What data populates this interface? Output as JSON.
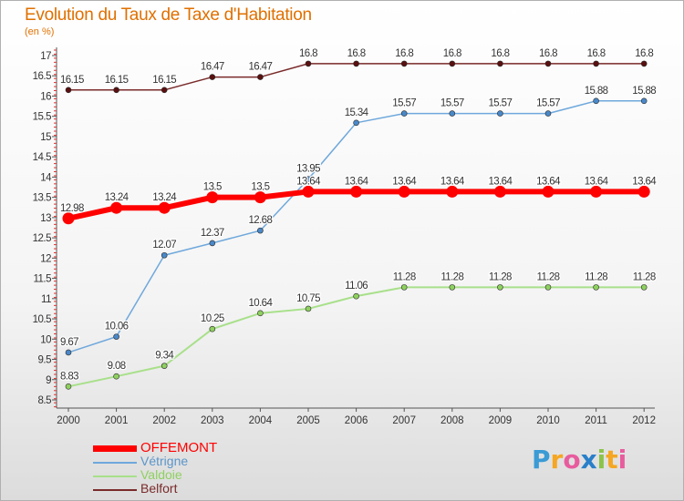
{
  "header": {
    "title": "Evolution du Taux de Taxe d'Habitation",
    "subtitle": "(en %)"
  },
  "legend": {
    "items": [
      {
        "label": "OFFEMONT",
        "color": "#ff0000"
      },
      {
        "label": "Vétrigne",
        "color": "#6fa8dc"
      },
      {
        "label": "Valdoie",
        "color": "#a8e08a"
      },
      {
        "label": "Belfort",
        "color": "#7a2a2a"
      }
    ]
  },
  "logo": {
    "letters": [
      "P",
      "r",
      "o",
      "x",
      "i",
      "t",
      "i"
    ],
    "colors": [
      "#3a9bd5",
      "#f5a623",
      "#e85c9e",
      "#2a7fc9",
      "#8bc34a",
      "#f5a623",
      "#e85c9e"
    ]
  },
  "chart_data": {
    "type": "line",
    "title": "Evolution du Taux de Taxe d'Habitation",
    "ylabel": "(en %)",
    "ylim": [
      8.5,
      17
    ],
    "yticks": [
      "8.5",
      "9",
      "9.5",
      "10",
      "10.5",
      "11",
      "11.5",
      "12",
      "12.5",
      "13",
      "13.5",
      "14",
      "14.5",
      "15",
      "15.5",
      "16",
      "16.5",
      "17"
    ],
    "categories": [
      "2000",
      "2001",
      "2002",
      "2003",
      "2004",
      "2005",
      "2006",
      "2007",
      "2008",
      "2009",
      "2010",
      "2011",
      "2012"
    ],
    "grid": false,
    "legend_position": "bottom-left",
    "series": [
      {
        "name": "Belfort",
        "color": "#7a2a2a",
        "fill": "#5a1010",
        "width": 1.5,
        "marker": 3,
        "values": [
          16.15,
          16.15,
          16.15,
          16.47,
          16.47,
          16.8,
          16.8,
          16.8,
          16.8,
          16.8,
          16.8,
          16.8,
          16.8
        ],
        "labels": [
          "16.15",
          "16.15",
          "16.15",
          "16.47",
          "16.47",
          "16.8",
          "16.8",
          "16.8",
          "16.8",
          "16.8",
          "16.8",
          "16.8",
          "16.8"
        ]
      },
      {
        "name": "Vétrigne",
        "color": "#6fa8dc",
        "fill": "#4a88c8",
        "width": 1.5,
        "marker": 3,
        "values": [
          9.67,
          10.06,
          12.07,
          12.37,
          12.68,
          13.95,
          15.34,
          15.57,
          15.57,
          15.57,
          15.57,
          15.88,
          15.88
        ],
        "labels": [
          "9.67",
          "10.06",
          "12.07",
          "12.37",
          "12.68",
          "13.95",
          "15.34",
          "15.57",
          "15.57",
          "15.57",
          "15.57",
          "15.88",
          "15.88"
        ]
      },
      {
        "name": "Valdoie",
        "color": "#a8e08a",
        "fill": "#8fd060",
        "width": 2,
        "marker": 3,
        "values": [
          8.83,
          9.08,
          9.34,
          10.25,
          10.64,
          10.75,
          11.06,
          11.28,
          11.28,
          11.28,
          11.28,
          11.28,
          11.28
        ],
        "labels": [
          "8.83",
          "9.08",
          "9.34",
          "10.25",
          "10.64",
          "10.75",
          "11.06",
          "11.28",
          "11.28",
          "11.28",
          "11.28",
          "11.28",
          "11.28"
        ]
      },
      {
        "name": "OFFEMONT",
        "color": "#ff0000",
        "fill": "#ff0000",
        "width": 6,
        "marker": 6.5,
        "values": [
          12.98,
          13.24,
          13.24,
          13.5,
          13.5,
          13.64,
          13.64,
          13.64,
          13.64,
          13.64,
          13.64,
          13.64,
          13.64
        ],
        "labels": [
          "12.98",
          "13.24",
          "13.24",
          "13.5",
          "13.5",
          "13.64",
          "13.64",
          "13.64",
          "13.64",
          "13.64",
          "13.64",
          "13.64",
          "13.64"
        ]
      }
    ]
  }
}
